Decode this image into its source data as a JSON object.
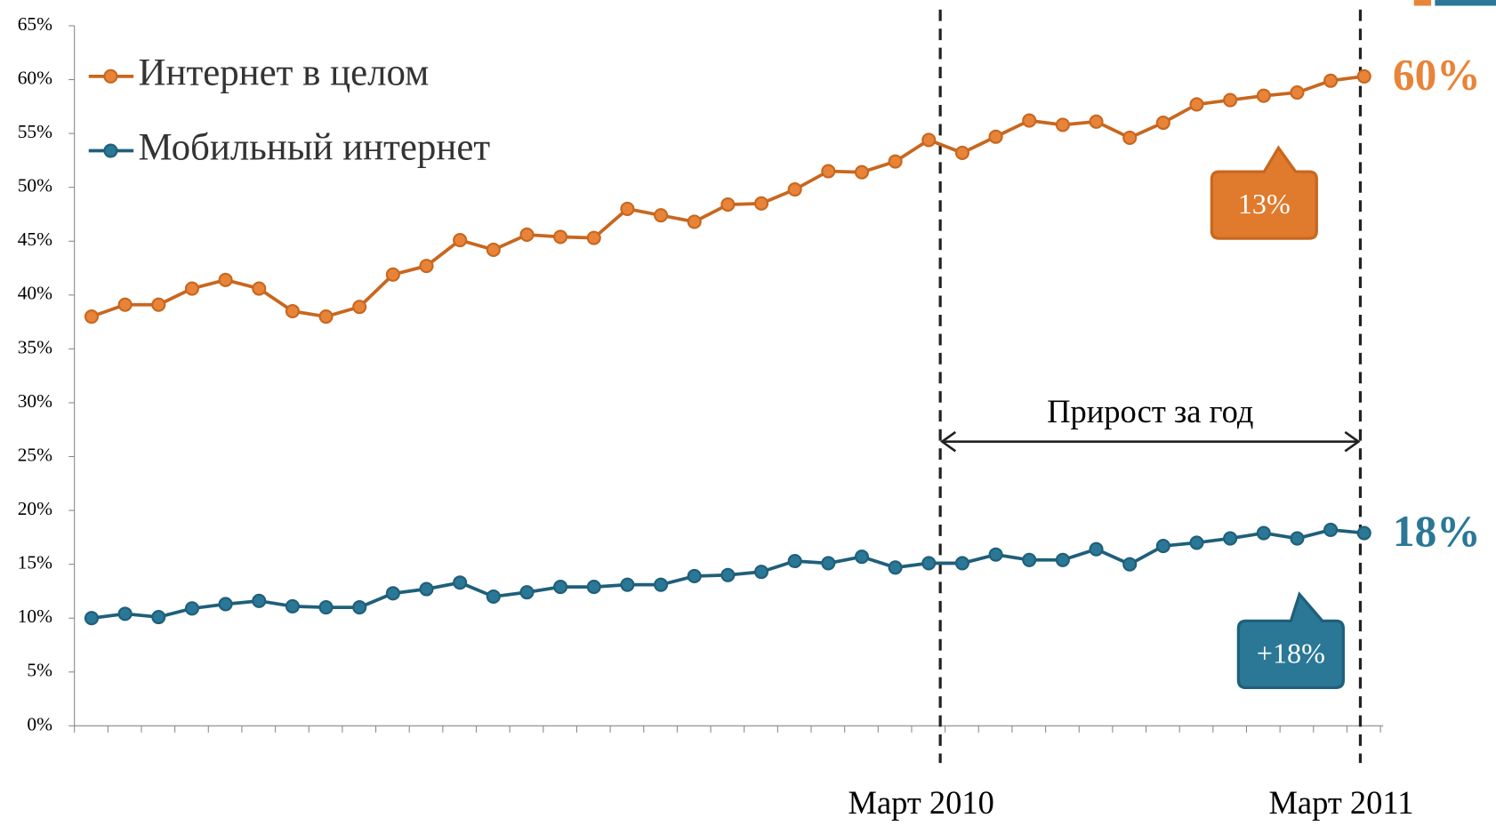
{
  "chart_data": {
    "type": "line",
    "categories": [
      null,
      null,
      null,
      null,
      null,
      null,
      null,
      null,
      null,
      null,
      null,
      null,
      null,
      null,
      null,
      null,
      null,
      null,
      null,
      null,
      null,
      null,
      null,
      null,
      null,
      "Март 2010",
      null,
      null,
      null,
      null,
      null,
      null,
      null,
      null,
      null,
      null,
      null,
      null,
      "Март 2011"
    ],
    "series": [
      {
        "name": "Интернет в целом",
        "color": "#c8671f",
        "marker_color": "#e8843a",
        "values": [
          38.0,
          39.1,
          39.1,
          40.6,
          41.4,
          40.6,
          38.5,
          38.0,
          38.9,
          41.9,
          42.7,
          45.1,
          44.2,
          45.6,
          45.4,
          45.3,
          48.0,
          47.4,
          46.8,
          48.4,
          48.5,
          49.8,
          51.5,
          51.4,
          52.4,
          54.4,
          53.2,
          54.7,
          56.2,
          55.8,
          56.1,
          54.6,
          56.0,
          57.7,
          58.1,
          58.5,
          58.8,
          59.9,
          60.3
        ]
      },
      {
        "name": "Мобильный интернет",
        "color": "#1f5f7a",
        "marker_color": "#2a7796",
        "values": [
          10.0,
          10.4,
          10.1,
          10.9,
          11.3,
          11.6,
          11.1,
          11.0,
          11.0,
          12.3,
          12.7,
          13.3,
          12.0,
          12.4,
          12.9,
          12.9,
          13.1,
          13.1,
          13.9,
          14.0,
          14.3,
          15.3,
          15.1,
          15.7,
          14.7,
          15.1,
          15.1,
          15.9,
          15.4,
          15.4,
          16.4,
          15.0,
          16.7,
          17.0,
          17.4,
          17.9,
          17.4,
          18.2,
          17.9
        ]
      }
    ],
    "end_labels": [
      "60%",
      "18%"
    ],
    "callouts": [
      "13%",
      "+18%"
    ],
    "span_label": "Прирост за год",
    "ylim": [
      0,
      65
    ],
    "yticks": [
      {
        "value": 0,
        "label": "0%"
      },
      {
        "value": 5,
        "label": "5%"
      },
      {
        "value": 10,
        "label": "10%"
      },
      {
        "value": 15,
        "label": "15%"
      },
      {
        "value": 20,
        "label": "20%"
      },
      {
        "value": 25,
        "label": "25%"
      },
      {
        "value": 30,
        "label": "30%"
      },
      {
        "value": 35,
        "label": "35%"
      },
      {
        "value": 40,
        "label": "40%"
      },
      {
        "value": 45,
        "label": "45%"
      },
      {
        "value": 50,
        "label": "50%"
      },
      {
        "value": 55,
        "label": "55%"
      },
      {
        "value": 60,
        "label": "60%"
      },
      {
        "value": 65,
        "label": "65%"
      }
    ],
    "legend": "top-left"
  }
}
